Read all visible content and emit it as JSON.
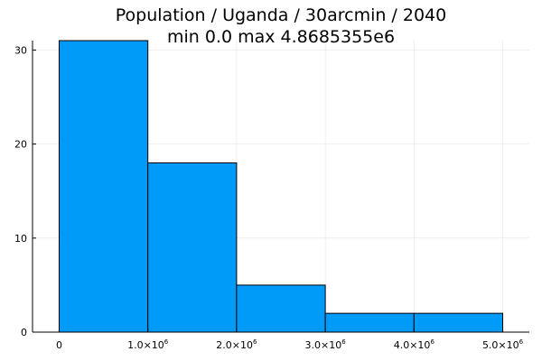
{
  "chart_data": {
    "type": "bar",
    "title": "Population / Uganda / 30arcmin / 2040",
    "subtitle": "min 0.0  max 4.8685355e6",
    "xlabel": "",
    "ylabel": "",
    "bins": [
      {
        "start": 0,
        "end": 1000000,
        "count": 31
      },
      {
        "start": 1000000,
        "end": 2000000,
        "count": 18
      },
      {
        "start": 2000000,
        "end": 3000000,
        "count": 5
      },
      {
        "start": 3000000,
        "end": 4000000,
        "count": 2
      },
      {
        "start": 4000000,
        "end": 5000000,
        "count": 2
      }
    ],
    "xlim": [
      -300000,
      5300000
    ],
    "ylim": [
      0,
      31
    ],
    "xticks": [
      {
        "value": 0,
        "mantissa": "0",
        "exponent": ""
      },
      {
        "value": 1000000,
        "mantissa": "1.0×10",
        "exponent": "6"
      },
      {
        "value": 2000000,
        "mantissa": "2.0×10",
        "exponent": "6"
      },
      {
        "value": 3000000,
        "mantissa": "3.0×10",
        "exponent": "6"
      },
      {
        "value": 4000000,
        "mantissa": "4.0×10",
        "exponent": "6"
      },
      {
        "value": 5000000,
        "mantissa": "5.0×10",
        "exponent": "6"
      }
    ],
    "yticks": [
      {
        "value": 0,
        "label": "0"
      },
      {
        "value": 10,
        "label": "10"
      },
      {
        "value": 20,
        "label": "20"
      },
      {
        "value": 30,
        "label": "30"
      }
    ],
    "grid": true,
    "legend": "none",
    "colors": {
      "bar": "#009af9",
      "edge": "#000000"
    }
  }
}
